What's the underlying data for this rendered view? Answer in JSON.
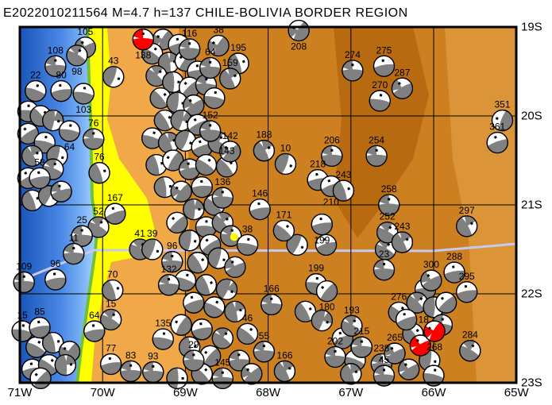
{
  "title": "E2022010211564 M=4.7 h=137 CHILE-BOLIVIA BORDER REGION",
  "map": {
    "lon_range": [
      -71,
      -65
    ],
    "lat_range": [
      -23,
      -19
    ],
    "lon_ticks": [
      {
        "value": -71,
        "label": "71W"
      },
      {
        "value": -70,
        "label": "70W"
      },
      {
        "value": -69,
        "label": "69W"
      },
      {
        "value": -68,
        "label": "68W"
      },
      {
        "value": -67,
        "label": "67W"
      },
      {
        "value": -66,
        "label": "66W"
      },
      {
        "value": -65,
        "label": "65W"
      }
    ],
    "lat_ticks": [
      {
        "value": -19,
        "label": "19S"
      },
      {
        "value": -20,
        "label": "20S"
      },
      {
        "value": -21,
        "label": "21S"
      },
      {
        "value": -22,
        "label": "22S"
      },
      {
        "value": -23,
        "label": "23S"
      }
    ],
    "colors": {
      "compression": "#808080",
      "highlight": "#ff0000",
      "dilatation": "#ffffff",
      "epicenter": "#ffff00",
      "profile_line": "#c8c8f0"
    },
    "epicenter": {
      "lon": -68.41,
      "lat": -21.36
    }
  },
  "labeled_events": [
    [
      -67.63,
      -19.04,
      "208",
      30
    ],
    [
      -66.98,
      -19.49,
      "274",
      90
    ],
    [
      -66.6,
      -19.44,
      "275",
      80
    ],
    [
      -66.38,
      -19.69,
      "287",
      60
    ],
    [
      -66.65,
      -19.83,
      "270",
      100
    ],
    [
      -65.17,
      -20.05,
      "351",
      20
    ],
    [
      -65.23,
      -20.3,
      "361",
      70
    ],
    [
      -67.79,
      -20.54,
      "10",
      200
    ],
    [
      -67.23,
      -20.45,
      "206",
      90
    ],
    [
      -66.69,
      -20.45,
      "254",
      90
    ],
    [
      -68.05,
      -20.39,
      "188",
      150
    ],
    [
      -67.4,
      -20.72,
      "218",
      80
    ],
    [
      -67.24,
      -20.79,
      "210",
      70
    ],
    [
      -67.09,
      -20.84,
      "243",
      160
    ],
    [
      -66.54,
      -21.0,
      "258",
      90
    ],
    [
      -67.35,
      -21.22,
      "199",
      80
    ],
    [
      -67.81,
      -21.29,
      "171",
      130
    ],
    [
      -65.6,
      -21.24,
      "297",
      150
    ],
    [
      -66.56,
      -21.31,
      "252",
      120
    ],
    [
      -66.38,
      -21.42,
      "243",
      150
    ],
    [
      -66.6,
      -21.73,
      "23",
      90
    ],
    [
      -65.75,
      -21.76,
      "288",
      80
    ],
    [
      -66.03,
      -21.85,
      "300",
      60
    ],
    [
      -65.6,
      -21.98,
      "295",
      80
    ],
    [
      -66.42,
      -22.21,
      "276",
      130
    ],
    [
      -65.56,
      -22.64,
      "284",
      120
    ],
    [
      -67.19,
      -22.71,
      "202",
      90
    ],
    [
      -67.42,
      -21.89,
      "199",
      100
    ],
    [
      -67.29,
      -21.97,
      "180",
      40
    ],
    [
      -67.96,
      -22.12,
      "166",
      90
    ],
    [
      -67.8,
      -22.87,
      "166",
      150
    ],
    [
      -66.63,
      -22.79,
      "238",
      90
    ],
    [
      -66.47,
      -22.67,
      "265",
      60
    ],
    [
      -66.6,
      -22.92,
      "45",
      90
    ],
    [
      -66.99,
      -22.36,
      "193",
      120
    ],
    [
      -66.87,
      -22.6,
      "215",
      90
    ],
    [
      -66.33,
      -22.29,
      "18",
      70
    ],
    [
      -70.21,
      -19.23,
      "105",
      60
    ],
    [
      -70.31,
      -19.32,
      "98",
      120
    ],
    [
      -70.57,
      -19.44,
      "108",
      90
    ],
    [
      -70.81,
      -19.72,
      "22",
      110
    ],
    [
      -70.5,
      -19.72,
      "80",
      80
    ],
    [
      -70.23,
      -19.75,
      "103",
      100
    ],
    [
      -69.87,
      -19.56,
      "43",
      200
    ],
    [
      -68.6,
      -19.21,
      "38",
      30
    ],
    [
      -68.36,
      -19.41,
      "195",
      160
    ],
    [
      -68.7,
      -19.46,
      "64",
      90
    ],
    [
      -68.46,
      -19.58,
      "159",
      150
    ],
    [
      -68.7,
      -20.17,
      "152",
      90
    ],
    [
      -68.5,
      -20.57,
      "143",
      140
    ],
    [
      -68.46,
      -20.4,
      "142",
      45
    ],
    [
      -70.11,
      -20.26,
      "76",
      90
    ],
    [
      -70.04,
      -20.64,
      "76",
      160
    ],
    [
      -70.4,
      -20.17,
      "64",
      100
    ],
    [
      -70.76,
      -20.7,
      "58",
      80
    ],
    [
      -68.95,
      -19.25,
      "116",
      90
    ],
    [
      -69.85,
      -21.1,
      "167",
      70
    ],
    [
      -70.05,
      -21.25,
      "52",
      120
    ],
    [
      -70.25,
      -21.35,
      "25",
      90
    ],
    [
      -70.35,
      -21.55,
      "11",
      90
    ],
    [
      -69.55,
      -21.5,
      "41",
      120
    ],
    [
      -69.4,
      -21.5,
      "39",
      200
    ],
    [
      -70.95,
      -21.87,
      "109",
      90
    ],
    [
      -70.57,
      -21.84,
      "96",
      80
    ],
    [
      -69.16,
      -21.64,
      "96",
      90
    ],
    [
      -69.88,
      -21.96,
      "70",
      160
    ],
    [
      -69.2,
      -21.9,
      "132",
      90
    ],
    [
      -69.9,
      -22.29,
      "15",
      120
    ],
    [
      -70.97,
      -22.42,
      "15",
      100
    ],
    [
      -70.76,
      -22.38,
      "85",
      80
    ],
    [
      -70.1,
      -22.42,
      "64",
      80
    ],
    [
      -69.9,
      -22.79,
      "77",
      80
    ],
    [
      -69.66,
      -22.87,
      "83",
      90
    ],
    [
      -69.39,
      -22.88,
      "93",
      90
    ],
    [
      -69.27,
      -22.51,
      "135",
      100
    ],
    [
      -68.9,
      -22.75,
      "29",
      90
    ],
    [
      -68.25,
      -22.45,
      "46",
      130
    ],
    [
      -68.05,
      -22.65,
      "55",
      90
    ],
    [
      -68.55,
      -22.95,
      "145",
      90
    ],
    [
      -68.1,
      -21.05,
      "146",
      80
    ],
    [
      -68.55,
      -20.92,
      "136",
      90
    ],
    [
      -68.25,
      -21.45,
      "38",
      100
    ]
  ],
  "highlighted_events": [
    [
      -69.51,
      -19.14,
      "138",
      90
    ],
    [
      -66.16,
      -22.58,
      "",
      60
    ],
    [
      -65.99,
      -22.42,
      "268",
      30
    ]
  ],
  "unlabeled_events": [
    [
      -69.27,
      -19.14
    ],
    [
      -69.08,
      -19.2
    ],
    [
      -69.4,
      -19.3
    ],
    [
      -69.2,
      -19.4
    ],
    [
      -69.0,
      -19.38
    ],
    [
      -68.85,
      -19.5
    ],
    [
      -69.35,
      -19.55
    ],
    [
      -69.15,
      -19.62
    ],
    [
      -68.95,
      -19.68
    ],
    [
      -68.75,
      -19.65
    ],
    [
      -69.3,
      -19.8
    ],
    [
      -69.1,
      -19.85
    ],
    [
      -68.9,
      -19.88
    ],
    [
      -68.65,
      -19.8
    ],
    [
      -69.25,
      -20.05
    ],
    [
      -69.05,
      -20.05
    ],
    [
      -68.85,
      -20.1
    ],
    [
      -69.4,
      -20.25
    ],
    [
      -69.2,
      -20.3
    ],
    [
      -69.0,
      -20.28
    ],
    [
      -68.8,
      -20.35
    ],
    [
      -68.6,
      -20.3
    ],
    [
      -69.35,
      -20.55
    ],
    [
      -69.15,
      -20.5
    ],
    [
      -68.95,
      -20.6
    ],
    [
      -68.75,
      -20.55
    ],
    [
      -69.25,
      -20.8
    ],
    [
      -69.05,
      -20.85
    ],
    [
      -68.8,
      -20.8
    ],
    [
      -68.65,
      -21.0
    ],
    [
      -68.9,
      -21.05
    ],
    [
      -69.1,
      -21.2
    ],
    [
      -68.75,
      -21.25
    ],
    [
      -68.55,
      -21.2
    ],
    [
      -68.95,
      -21.4
    ],
    [
      -68.7,
      -21.45
    ],
    [
      -68.45,
      -21.35
    ],
    [
      -68.85,
      -21.65
    ],
    [
      -68.6,
      -21.6
    ],
    [
      -68.4,
      -21.7
    ],
    [
      -69.0,
      -21.85
    ],
    [
      -68.75,
      -21.9
    ],
    [
      -68.5,
      -21.95
    ],
    [
      -68.9,
      -22.1
    ],
    [
      -68.65,
      -22.15
    ],
    [
      -68.4,
      -22.2
    ],
    [
      -69.05,
      -22.35
    ],
    [
      -68.8,
      -22.4
    ],
    [
      -68.55,
      -22.5
    ],
    [
      -68.95,
      -22.6
    ],
    [
      -68.7,
      -22.7
    ],
    [
      -68.35,
      -22.75
    ],
    [
      -68.8,
      -22.9
    ],
    [
      -69.1,
      -22.95
    ],
    [
      -68.2,
      -22.9
    ],
    [
      -70.9,
      -19.95
    ],
    [
      -70.75,
      -20.0
    ],
    [
      -70.6,
      -20.05
    ],
    [
      -70.9,
      -20.2
    ],
    [
      -70.7,
      -20.3
    ],
    [
      -70.85,
      -20.45
    ],
    [
      -70.55,
      -20.45
    ],
    [
      -70.9,
      -20.7
    ],
    [
      -70.6,
      -20.6
    ],
    [
      -70.85,
      -20.95
    ],
    [
      -70.65,
      -20.9
    ],
    [
      -70.5,
      -20.85
    ],
    [
      -70.8,
      -22.6
    ],
    [
      -70.6,
      -22.55
    ],
    [
      -70.4,
      -22.65
    ],
    [
      -70.85,
      -22.85
    ],
    [
      -70.65,
      -22.8
    ],
    [
      -70.45,
      -22.8
    ],
    [
      -70.75,
      -22.95
    ],
    [
      -66.1,
      -21.95
    ],
    [
      -66.2,
      -22.1
    ],
    [
      -66.0,
      -22.15
    ],
    [
      -65.85,
      -22.1
    ],
    [
      -65.9,
      -22.35
    ],
    [
      -66.25,
      -22.45
    ],
    [
      -66.05,
      -22.75
    ],
    [
      -66.3,
      -22.85
    ],
    [
      -66.0,
      -22.92
    ],
    [
      -67.55,
      -22.2
    ],
    [
      -67.35,
      -22.3
    ],
    [
      -67.1,
      -22.5
    ],
    [
      -66.95,
      -22.75
    ],
    [
      -67.0,
      -22.9
    ],
    [
      -67.65,
      -21.45
    ],
    [
      -67.3,
      -21.45
    ],
    [
      -66.58,
      -21.5
    ]
  ]
}
